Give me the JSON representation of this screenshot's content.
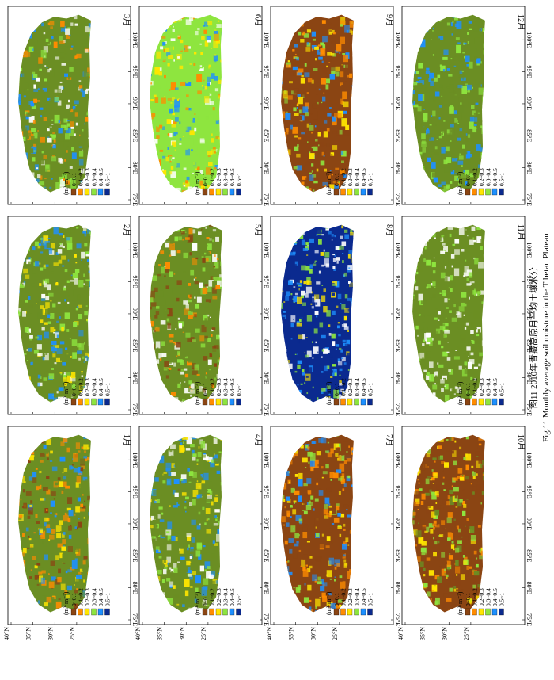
{
  "figure": {
    "caption_cn": "图11 2010年青藏高原月平均土壤水分",
    "caption_en": "Fig.11 Monthly average soil moisture in the Tibetan Plateau",
    "layout_order": [
      [
        "1月",
        "2月",
        "3月"
      ],
      [
        "4月",
        "5月",
        "6月"
      ],
      [
        "7月",
        "8月",
        "9月"
      ],
      [
        "10月",
        "11月",
        "12月"
      ]
    ],
    "lat_ticks": [
      "40°N",
      "35°N",
      "30°N",
      "25°N"
    ],
    "lon_ticks": [
      "75°E",
      "80°E",
      "85°E",
      "90°E",
      "95°E",
      "100°E"
    ],
    "legend": {
      "unit": "(m³·m⁻³)",
      "classes": [
        {
          "label": "0~0.1",
          "color": "#8b4513"
        },
        {
          "label": "0.1~0.2",
          "color": "#ff8c00"
        },
        {
          "label": "0.2~0.3",
          "color": "#ffe600"
        },
        {
          "label": "0.3~0.4",
          "color": "#8ee53f"
        },
        {
          "label": "0.4~0.5",
          "color": "#1e90ff"
        },
        {
          "label": "0.5~1",
          "color": "#0b2a8f"
        }
      ]
    },
    "months": [
      {
        "label": "1月",
        "dominant": [
          "#6b8e23",
          "#ff8c00",
          "#8b4513",
          "#1e90ff",
          "#ffe600"
        ]
      },
      {
        "label": "2月",
        "dominant": [
          "#6b8e23",
          "#8ee53f",
          "#1e90ff",
          "#ffe600",
          "#ffffff"
        ]
      },
      {
        "label": "3月",
        "dominant": [
          "#6b8e23",
          "#1e90ff",
          "#8ee53f",
          "#ff8c00",
          "#ffffff"
        ]
      },
      {
        "label": "4月",
        "dominant": [
          "#6b8e23",
          "#1e90ff",
          "#8ee53f",
          "#ffe600",
          "#ffffff"
        ]
      },
      {
        "label": "5月",
        "dominant": [
          "#6b8e23",
          "#8b4513",
          "#ff8c00",
          "#8ee53f",
          "#ffffff"
        ]
      },
      {
        "label": "6月",
        "dominant": [
          "#8ee53f",
          "#ffe600",
          "#ff8c00",
          "#1e90ff",
          "#ffffff"
        ]
      },
      {
        "label": "7月",
        "dominant": [
          "#8b4513",
          "#ff8c00",
          "#ffe600",
          "#8ee53f",
          "#1e90ff"
        ]
      },
      {
        "label": "8月",
        "dominant": [
          "#0b2a8f",
          "#1e90ff",
          "#8ee53f",
          "#ffe600",
          "#ffffff"
        ]
      },
      {
        "label": "9月",
        "dominant": [
          "#8b4513",
          "#ff8c00",
          "#ffe600",
          "#8ee53f",
          "#1e90ff"
        ]
      },
      {
        "label": "10月",
        "dominant": [
          "#8b4513",
          "#ff8c00",
          "#ffe600",
          "#8ee53f",
          "#6b8e23"
        ]
      },
      {
        "label": "11月",
        "dominant": [
          "#6b8e23",
          "#ffffff",
          "#8ee53f"
        ]
      },
      {
        "label": "12月",
        "dominant": [
          "#6b8e23",
          "#8ee53f",
          "#1e90ff"
        ]
      }
    ]
  }
}
